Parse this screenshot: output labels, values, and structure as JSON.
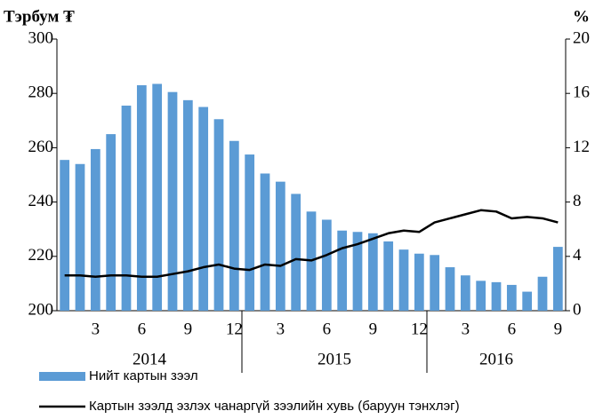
{
  "chart_data": {
    "type": "bar-line",
    "y_label": "Тэрбум ₮",
    "y2_label": "%",
    "categories": [
      null,
      null,
      "3",
      null,
      null,
      "6",
      null,
      null,
      "9",
      null,
      null,
      "12",
      null,
      null,
      "3",
      null,
      null,
      "6",
      null,
      null,
      "9",
      null,
      null,
      "12",
      null,
      null,
      "3",
      null,
      null,
      "6",
      null,
      null,
      "9"
    ],
    "year_labels": [
      "2014",
      "2015",
      "2016"
    ],
    "series": [
      {
        "name": "Нийт картын зээл",
        "color": "#5b9bd5",
        "kind": "bar",
        "values": [
          255.5,
          254,
          259.5,
          265,
          275.5,
          283,
          283.5,
          280.5,
          277.5,
          275,
          270.5,
          262.5,
          257.5,
          250.5,
          247.5,
          243,
          236.5,
          233.5,
          229.5,
          229,
          228.5,
          225.5,
          222.5,
          221,
          220.5,
          216,
          213,
          211,
          210.5,
          209.5,
          207,
          212.5,
          223.5
        ]
      },
      {
        "name": "Картын зээлд эзлэх чанаргүй зээлийн хувь (баруун тэнхлэг)",
        "color": "#000000",
        "kind": "line",
        "axis": "y2",
        "values": [
          2.6,
          2.6,
          2.5,
          2.6,
          2.6,
          2.5,
          2.5,
          2.7,
          2.9,
          3.2,
          3.4,
          3.1,
          3.0,
          3.4,
          3.3,
          3.8,
          3.7,
          4.1,
          4.6,
          4.9,
          5.3,
          5.7,
          5.9,
          5.8,
          6.5,
          6.8,
          7.1,
          7.4,
          7.3,
          6.8,
          6.9,
          6.8,
          6.5
        ]
      }
    ],
    "ylim": [
      200,
      300
    ],
    "yticks": [
      200,
      220,
      240,
      260,
      280,
      300
    ],
    "y2lim": [
      0,
      20
    ],
    "y2ticks": [
      0,
      4,
      8,
      12,
      16,
      20
    ]
  }
}
